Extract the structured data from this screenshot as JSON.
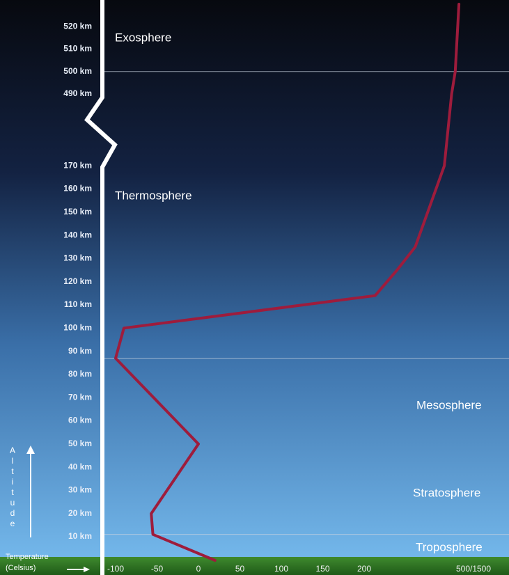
{
  "chart_data": {
    "type": "line",
    "x_label": [
      "Temperature",
      "(Celsius)"
    ],
    "y_label": "Altitude",
    "layers": [
      "Exosphere",
      "Thermosphere",
      "Mesosphere",
      "Stratosphere",
      "Troposphere"
    ],
    "x": [
      20,
      -55,
      -57,
      0,
      -100,
      -90,
      230,
      290,
      340,
      420,
      440,
      450,
      460
    ],
    "values": [
      0,
      11,
      20,
      50,
      87,
      100,
      114,
      125,
      135,
      170,
      490,
      500,
      530
    ],
    "color": "#9e1c3c",
    "boundaries": [
      11,
      87,
      500
    ],
    "xlim": [
      -115,
      595
    ],
    "ylim": [
      0,
      530
    ],
    "xticks": [
      -100,
      -50,
      0,
      50,
      100,
      150,
      200,
      {
        "value": 500,
        "label": "500/1500"
      }
    ],
    "yticks": [
      {
        "value": 10,
        "label": "10 km"
      },
      {
        "value": 20,
        "label": "20 km"
      },
      {
        "value": 30,
        "label": "30 km"
      },
      {
        "value": 40,
        "label": "40 km"
      },
      {
        "value": 50,
        "label": "50 km"
      },
      {
        "value": 60,
        "label": "60 km"
      },
      {
        "value": 70,
        "label": "70 km"
      },
      {
        "value": 80,
        "label": "80 km"
      },
      {
        "value": 90,
        "label": "90 km"
      },
      {
        "value": 100,
        "label": "100 km"
      },
      {
        "value": 110,
        "label": "110 km"
      },
      {
        "value": 120,
        "label": "120 km"
      },
      {
        "value": 130,
        "label": "130 km"
      },
      {
        "value": 140,
        "label": "140 km"
      },
      {
        "value": 150,
        "label": "150 km"
      },
      {
        "value": 160,
        "label": "160 km"
      },
      {
        "value": 170,
        "label": "170 km"
      },
      {
        "value": 490,
        "label": "490 km"
      },
      {
        "value": 500,
        "label": "500 km"
      },
      {
        "value": 510,
        "label": "510 km"
      },
      {
        "value": 520,
        "label": "520 km"
      }
    ]
  }
}
